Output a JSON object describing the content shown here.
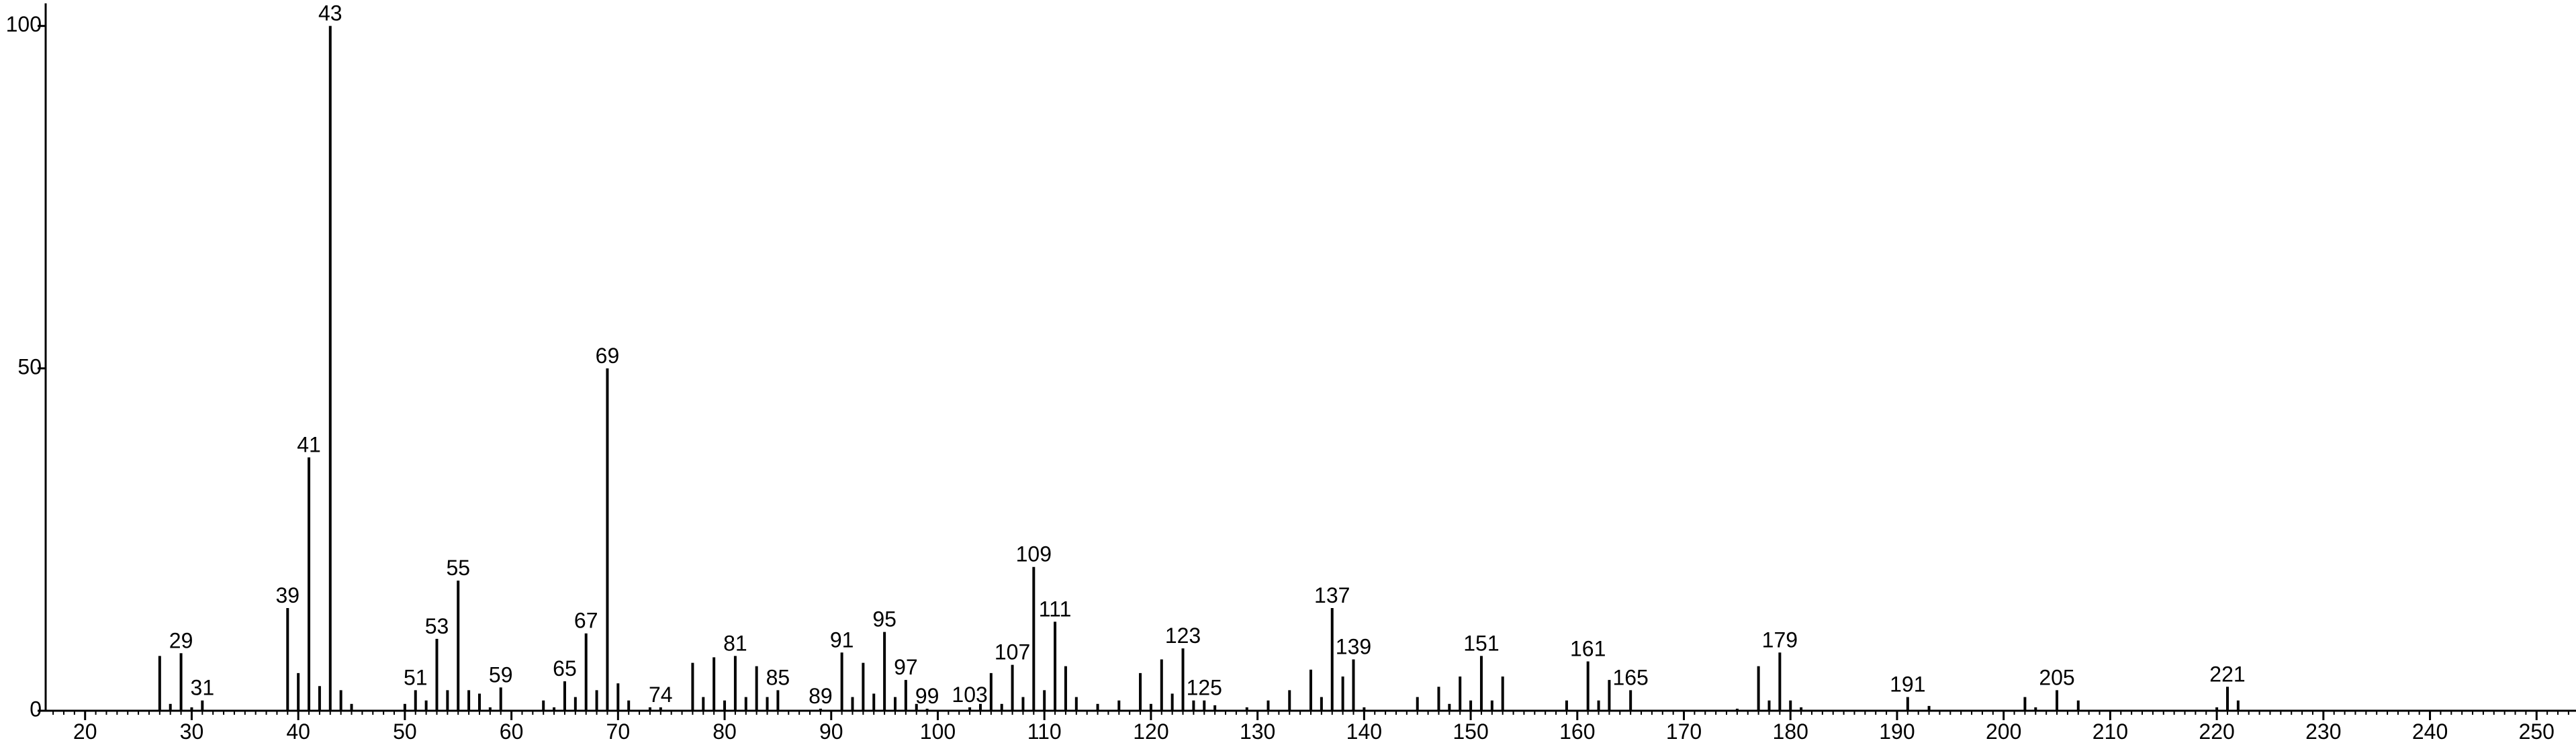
{
  "chart_data": {
    "type": "bar",
    "color": "#000000",
    "x": [
      27,
      28,
      29,
      30,
      31,
      39,
      40,
      41,
      42,
      43,
      44,
      45,
      50,
      51,
      52,
      53,
      54,
      55,
      56,
      57,
      58,
      59,
      63,
      64,
      65,
      66,
      67,
      68,
      69,
      70,
      71,
      73,
      74,
      77,
      78,
      79,
      80,
      81,
      82,
      83,
      84,
      85,
      89,
      91,
      92,
      93,
      94,
      95,
      96,
      97,
      98,
      99,
      103,
      104,
      105,
      106,
      107,
      108,
      109,
      110,
      111,
      112,
      113,
      115,
      117,
      119,
      120,
      121,
      122,
      123,
      124,
      125,
      126,
      129,
      131,
      133,
      135,
      136,
      137,
      138,
      139,
      140,
      145,
      147,
      148,
      149,
      150,
      151,
      152,
      153,
      159,
      161,
      162,
      163,
      165,
      175,
      177,
      178,
      179,
      180,
      181,
      191,
      193,
      202,
      203,
      205,
      207,
      220,
      221,
      222
    ],
    "values": [
      8,
      1,
      8.4,
      0.5,
      1.5,
      15,
      5.5,
      37,
      3.6,
      100,
      3,
      1,
      1,
      3,
      1.5,
      10.5,
      3,
      19,
      3,
      2.5,
      0.5,
      3.4,
      1.5,
      0.5,
      4.3,
      2,
      11.3,
      3,
      50,
      4,
      1.5,
      0.5,
      0.5,
      7,
      2,
      7.8,
      1.5,
      8,
      2,
      6.5,
      2,
      3,
      0.3,
      8.5,
      2,
      7,
      2.5,
      11.5,
      2,
      4.5,
      1,
      0.3,
      0.5,
      1,
      5.5,
      1,
      6.7,
      2,
      21,
      3,
      13,
      6.5,
      2,
      1,
      1.5,
      5.5,
      1,
      7.5,
      2.5,
      9.1,
      1.5,
      1.5,
      0.8,
      0.5,
      1.5,
      3,
      6,
      2,
      15,
      5,
      7.5,
      0.5,
      2,
      3.5,
      1,
      5,
      1.5,
      8,
      1.5,
      5,
      1.5,
      7.2,
      1.5,
      4.5,
      3,
      0.3,
      6.5,
      1.5,
      8.5,
      1.5,
      0.5,
      2,
      0.7,
      2,
      0.5,
      3,
      1.5,
      0.5,
      3.5,
      1.5
    ],
    "x_labels": [
      null,
      null,
      29,
      null,
      31,
      39,
      null,
      41,
      null,
      43,
      null,
      null,
      null,
      51,
      null,
      53,
      null,
      55,
      null,
      null,
      null,
      59,
      null,
      null,
      65,
      null,
      67,
      null,
      69,
      null,
      null,
      null,
      74,
      null,
      null,
      null,
      null,
      81,
      null,
      null,
      null,
      85,
      89,
      91,
      null,
      null,
      null,
      95,
      null,
      97,
      null,
      99,
      103,
      null,
      null,
      null,
      107,
      null,
      109,
      null,
      111,
      null,
      null,
      null,
      null,
      null,
      null,
      null,
      null,
      123,
      null,
      125,
      null,
      null,
      null,
      null,
      null,
      null,
      137,
      null,
      139,
      null,
      null,
      null,
      null,
      null,
      null,
      151,
      null,
      null,
      null,
      161,
      null,
      null,
      165,
      null,
      null,
      null,
      179,
      null,
      null,
      191,
      null,
      null,
      null,
      205,
      null,
      null,
      221,
      null
    ],
    "xlim": [
      16.3,
      253.7
    ],
    "ylim": [
      0,
      103.3
    ],
    "xticks": [
      20,
      30,
      40,
      50,
      60,
      70,
      80,
      90,
      100,
      110,
      120,
      130,
      140,
      150,
      160,
      170,
      180,
      190,
      200,
      210,
      220,
      230,
      240,
      250
    ],
    "yticks": [
      0,
      50,
      100
    ]
  }
}
